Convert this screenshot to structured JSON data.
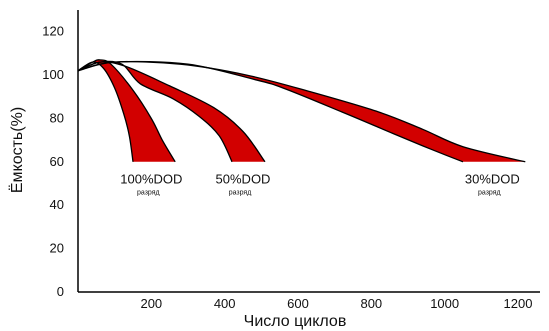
{
  "chart_data": {
    "type": "area",
    "xlabel": "Число циклов",
    "ylabel": "Ёмкость(%)",
    "xlim": [
      0,
      1260
    ],
    "ylim": [
      0,
      130
    ],
    "xticks": [
      200,
      400,
      600,
      800,
      1000,
      1200
    ],
    "yticks": [
      0,
      20,
      40,
      60,
      80,
      100,
      120
    ],
    "grid": false,
    "fill_color": "#d20000",
    "line_color": "#000000",
    "series": [
      {
        "label": "100%DOD",
        "sublabel": "разряд",
        "upper": [
          [
            0,
            102
          ],
          [
            40,
            106
          ],
          [
            60,
            107
          ],
          [
            90,
            105
          ],
          [
            150,
            93
          ],
          [
            200,
            80
          ],
          [
            230,
            70
          ],
          [
            265,
            60
          ]
        ],
        "lower": [
          [
            0,
            102
          ],
          [
            40,
            106
          ],
          [
            70,
            103
          ],
          [
            100,
            94
          ],
          [
            125,
            82
          ],
          [
            140,
            72
          ],
          [
            150,
            60
          ]
        ],
        "label_at": [
          200,
          50
        ]
      },
      {
        "label": "50%DOD",
        "sublabel": "разряд",
        "upper": [
          [
            0,
            102
          ],
          [
            60,
            106
          ],
          [
            130,
            104
          ],
          [
            250,
            95
          ],
          [
            370,
            85
          ],
          [
            450,
            74
          ],
          [
            510,
            60
          ]
        ],
        "lower": [
          [
            0,
            102
          ],
          [
            60,
            106
          ],
          [
            120,
            105
          ],
          [
            170,
            96
          ],
          [
            260,
            89
          ],
          [
            330,
            81
          ],
          [
            385,
            72
          ],
          [
            420,
            60
          ]
        ],
        "label_at": [
          450,
          50
        ]
      },
      {
        "label": "30%DOD",
        "sublabel": "разряд",
        "upper": [
          [
            0,
            102
          ],
          [
            100,
            106
          ],
          [
            280,
            105
          ],
          [
            460,
            100
          ],
          [
            640,
            92
          ],
          [
            820,
            83
          ],
          [
            940,
            75
          ],
          [
            1050,
            67
          ],
          [
            1220,
            60
          ]
        ],
        "lower": [
          [
            0,
            102
          ],
          [
            100,
            106
          ],
          [
            300,
            105
          ],
          [
            480,
            98
          ],
          [
            560,
            94
          ],
          [
            720,
            83
          ],
          [
            860,
            73
          ],
          [
            960,
            66
          ],
          [
            1050,
            60
          ]
        ],
        "label_at": [
          1130,
          50
        ]
      }
    ]
  }
}
